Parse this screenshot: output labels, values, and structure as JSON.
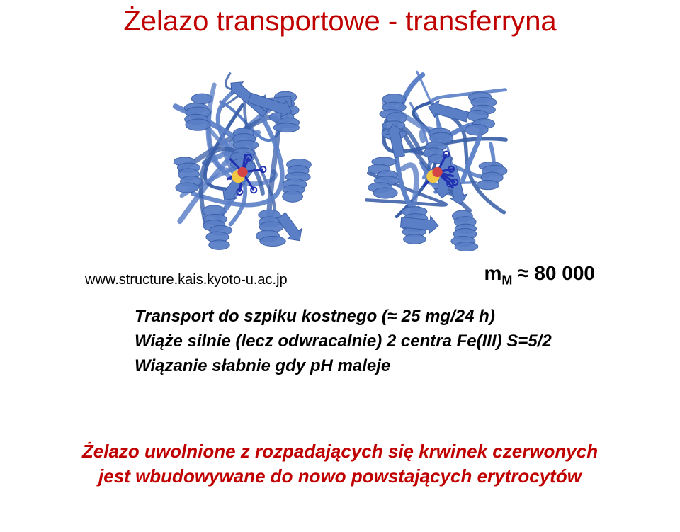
{
  "title": {
    "text": "Żelazo transportowe - transferryna",
    "color": "#c00000"
  },
  "citation": {
    "text": "www.structure.kais.kyoto-u.ac.jp",
    "color": "#000000"
  },
  "mass": {
    "prefix": "m",
    "sub": "M",
    "approx": "≈",
    "value": "80 000",
    "color": "#000000"
  },
  "body": {
    "line1": "Transport do szpiku kostnego (≈ 25 mg/24 h)",
    "line2": "Wiąże silnie (lecz odwracalnie) 2 centra Fe(III)  S=5/2",
    "line3": "Wiązanie słabnie gdy pH maleje",
    "color": "#000000"
  },
  "footer": {
    "line1": "Żelazo uwolnione z rozpadających się krwinek czerwonych",
    "line2": "jest wbudowywane do nowo powstających erytrocytów",
    "color": "#c00000"
  },
  "protein": {
    "ribbon_color": "#5b7fc7",
    "ribbon_shadow": "#3a5fa8",
    "fe_color": "#d64545",
    "sulfur_color": "#f2c744",
    "ligand_color": "#2030b0"
  }
}
